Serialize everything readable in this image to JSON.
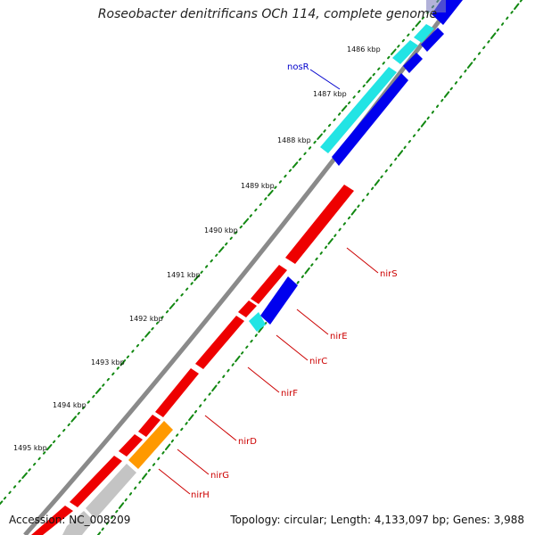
{
  "title": "Roseobacter denitrificans OCh 114, complete genome",
  "accession": "Accession: NC_008209",
  "topology": "Topology: circular; Length: 4,133,097 bp; Genes: 3,988",
  "colors": {
    "backbone": "#8a8a8a",
    "ticks": "#118811",
    "red": "#ee0000",
    "blue": "#0000ee",
    "cyan": "#22e4e4",
    "orange": "#ff9900",
    "gray": "#c4c4c4",
    "labelBlue": "#0000cc",
    "labelRed": "#cc0000"
  },
  "kbp_labels": [
    "1486 kbp",
    "1487 kbp",
    "1488 kbp",
    "1489 kbp",
    "1490 kbp",
    "1491 kbp",
    "1492 kbp",
    "1493 kbp",
    "1494 kbp",
    "1495 kbp"
  ],
  "gene_labels": [
    "nosR",
    "nirS",
    "nirE",
    "nirC",
    "nirF",
    "nirD",
    "nirG",
    "nirH"
  ]
}
